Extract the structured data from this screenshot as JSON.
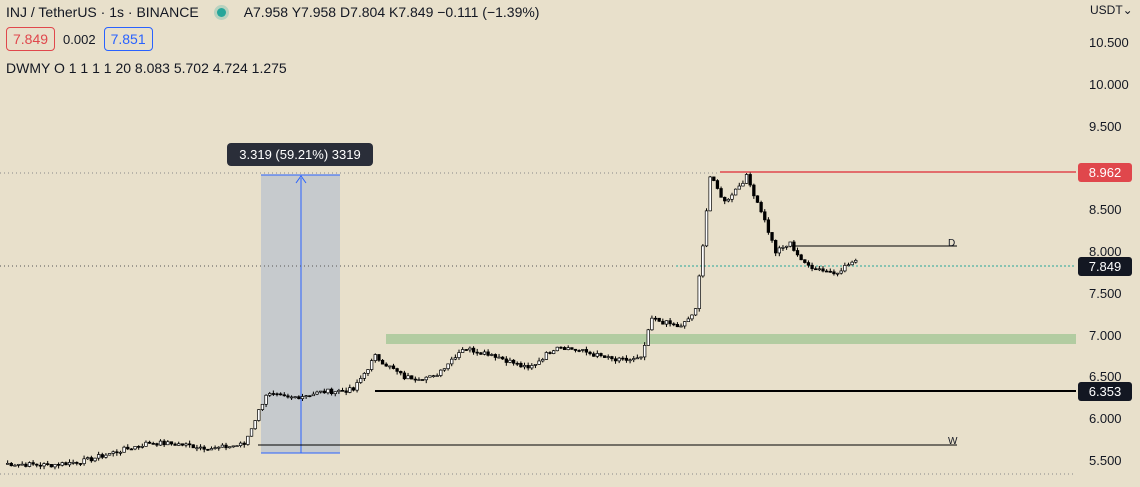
{
  "header": {
    "symbol": "INJ / TetherUS · 1s · BINANCE",
    "ohlc": "A7.958 Y7.958 D7.804 K7.849 −0.111 (−1.39%)"
  },
  "prices": {
    "sell": "7.849",
    "spread": "0.002",
    "buy": "7.851"
  },
  "indicator": "DWMY O 1 1 1 1 20   8.083  5.702  4.724  1.275",
  "currency": "USDT",
  "measure_label": "3.319 (59.21%) 3319",
  "tags": {
    "high": "8.962",
    "current": "7.849",
    "support": "6.353"
  },
  "line_labels": {
    "d": "D",
    "w": "W"
  },
  "colors": {
    "up": "#ffffff",
    "down": "#000000",
    "red": "#e0474c",
    "green": "#26a69a",
    "zone": "#a8c89a",
    "measure": "#aab8d0"
  },
  "chart_data": {
    "type": "candlestick",
    "y_ticks": [
      "10.500",
      "10.000",
      "9.500",
      "9.000",
      "8.500",
      "8.000",
      "7.500",
      "7.000",
      "6.500",
      "6.000",
      "5.500"
    ],
    "levels": [
      8.962,
      7.849,
      6.353
    ],
    "anchors": [
      [
        0,
        5.47
      ],
      [
        12,
        5.45
      ],
      [
        22,
        5.5
      ],
      [
        30,
        5.6
      ],
      [
        40,
        5.72
      ],
      [
        48,
        5.7
      ],
      [
        58,
        5.65
      ],
      [
        66,
        5.7
      ],
      [
        72,
        6.3
      ],
      [
        78,
        6.25
      ],
      [
        88,
        6.33
      ],
      [
        96,
        6.35
      ],
      [
        102,
        6.75
      ],
      [
        110,
        6.5
      ],
      [
        118,
        6.5
      ],
      [
        126,
        6.85
      ],
      [
        134,
        6.78
      ],
      [
        144,
        6.6
      ],
      [
        152,
        6.88
      ],
      [
        160,
        6.8
      ],
      [
        168,
        6.7
      ],
      [
        175,
        6.72
      ],
      [
        178,
        7.2
      ],
      [
        186,
        7.1
      ],
      [
        190,
        7.3
      ],
      [
        194,
        8.9
      ],
      [
        198,
        8.6
      ],
      [
        204,
        8.9
      ],
      [
        208,
        8.5
      ],
      [
        212,
        8.0
      ],
      [
        216,
        8.1
      ],
      [
        220,
        7.85
      ],
      [
        228,
        7.75
      ],
      [
        234,
        7.9
      ]
    ]
  }
}
